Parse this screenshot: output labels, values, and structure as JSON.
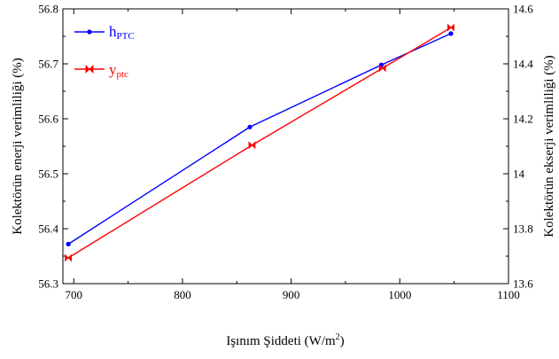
{
  "chart_data": {
    "type": "line",
    "xlabel": "Işınım Şiddeti (W/m",
    "xlabel_sup": "2",
    "xlabel_tail": ")",
    "ylabel_left": "Kolektörün enerji verimliliği (%)",
    "ylabel_right": "Kolektörün ekserji verimliliği (%)",
    "xlim": [
      690,
      1100
    ],
    "ylim_left": [
      56.3,
      56.8
    ],
    "ylim_right": [
      13.6,
      14.6
    ],
    "x_ticks": [
      700,
      800,
      900,
      1000,
      1100
    ],
    "x_tick_labels": [
      "700",
      "800",
      "900",
      "1000",
      "1100"
    ],
    "y_left_ticks": [
      56.3,
      56.4,
      56.5,
      56.6,
      56.7,
      56.8
    ],
    "y_left_tick_labels": [
      "56.3",
      "56.4",
      "56.5",
      "56.6",
      "56.7",
      "56.8"
    ],
    "y_right_ticks": [
      13.6,
      13.8,
      14.0,
      14.2,
      14.4,
      14.6
    ],
    "y_right_tick_labels": [
      "13.6",
      "13.8",
      "14",
      "14.2",
      "14.4",
      "14.6"
    ],
    "grid": false,
    "legend_position": "top-left",
    "series": [
      {
        "name": "h",
        "name_sub": "PTC",
        "axis": "left",
        "color": "#0000ff",
        "marker": "circle",
        "x": [
          695,
          862,
          983,
          1047
        ],
        "y": [
          56.372,
          56.585,
          56.698,
          56.755
        ]
      },
      {
        "name": "y",
        "name_sub": "ptc",
        "axis": "right",
        "color": "#ff0000",
        "marker": "bowtie",
        "x": [
          695,
          864,
          984,
          1047
        ],
        "y": [
          13.694,
          14.104,
          14.384,
          14.532
        ]
      }
    ]
  }
}
